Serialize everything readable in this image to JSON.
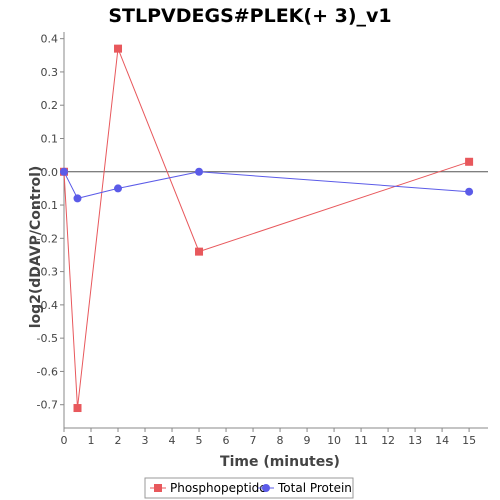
{
  "chart_data": {
    "type": "line",
    "title": "STLPVDEGS#PLEK(+ 3)_v1",
    "xlabel": "Time (minutes)",
    "ylabel": "log2(dDAVP/Control)",
    "xlim": [
      0,
      15.7
    ],
    "ylim": [
      -0.77,
      0.42
    ],
    "xticks": [
      "0",
      "1",
      "2",
      "3",
      "4",
      "5",
      "6",
      "7",
      "8",
      "9",
      "10",
      "11",
      "12",
      "13",
      "14",
      "15"
    ],
    "yticks": [
      "0.4",
      "0.3",
      "0.2",
      "0.1",
      "0.0",
      "-0.1",
      "-0.2",
      "-0.3",
      "-0.4",
      "-0.5",
      "-0.6",
      "-0.7"
    ],
    "grid": false,
    "zero_line": true,
    "legend_position": "bottom",
    "series": [
      {
        "name": "Phosphopeptide",
        "color": "#e8585c",
        "marker": "square",
        "x": [
          0,
          0.5,
          2,
          5,
          15
        ],
        "y": [
          0.0,
          -0.71,
          0.37,
          -0.24,
          0.03
        ]
      },
      {
        "name": "Total Protein",
        "color": "#5b5be8",
        "marker": "circle",
        "x": [
          0,
          0.5,
          2,
          5,
          15
        ],
        "y": [
          0.0,
          -0.08,
          -0.05,
          0.0,
          -0.06
        ]
      }
    ]
  }
}
